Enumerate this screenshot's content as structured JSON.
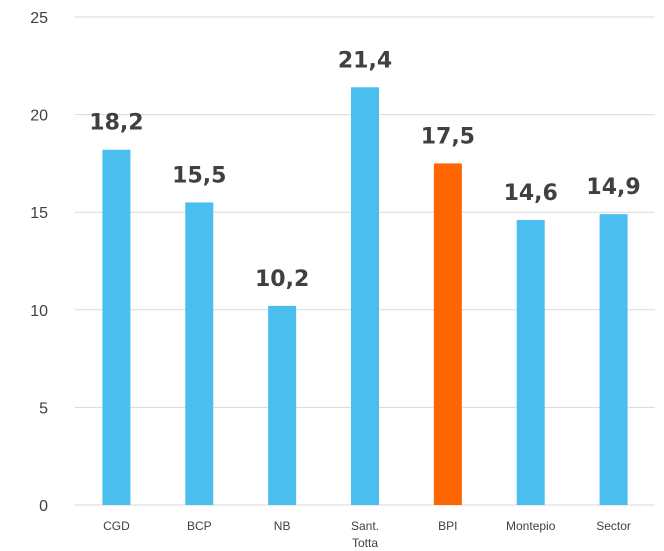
{
  "chart_data": {
    "type": "bar",
    "categories": [
      "CGD",
      "BCP",
      "NB",
      "Sant. Totta",
      "BPI",
      "Montepio",
      "Sector"
    ],
    "category_lines": [
      [
        "CGD"
      ],
      [
        "BCP"
      ],
      [
        "NB"
      ],
      [
        "Sant.",
        "Totta"
      ],
      [
        "BPI"
      ],
      [
        "Montepio"
      ],
      [
        "Sector"
      ]
    ],
    "values": [
      18.2,
      15.5,
      10.2,
      21.4,
      17.5,
      14.6,
      14.9
    ],
    "data_labels": [
      "18,2",
      "15,5",
      "10,2",
      "21,4",
      "17,5",
      "14,6",
      "14,9"
    ],
    "yticks": [
      "0",
      "5",
      "10",
      "15",
      "20",
      "25"
    ],
    "ylim": [
      0,
      25
    ],
    "grid": true,
    "colors": {
      "default": "#4BBEF0",
      "highlight": "#FF6600",
      "highlight_index": 4,
      "grid": "#D9D9D9",
      "text": "#404040"
    }
  }
}
